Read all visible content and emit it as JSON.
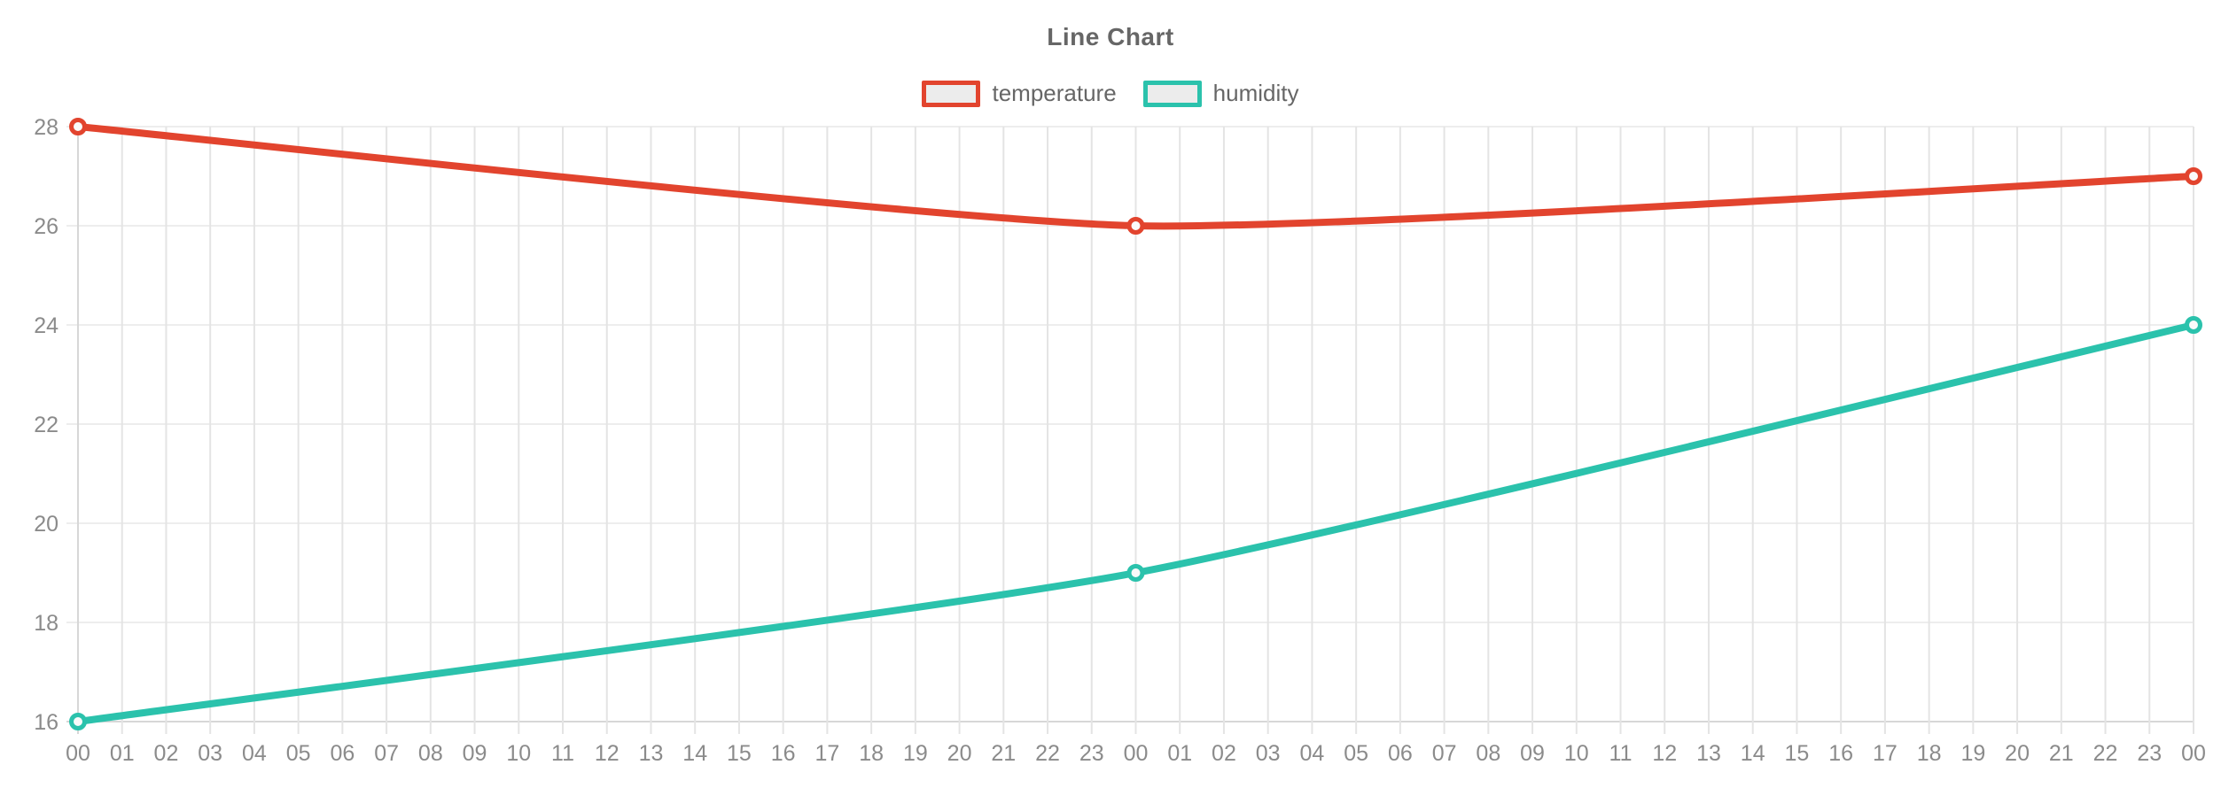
{
  "chart_data": {
    "type": "line",
    "title": "Line Chart",
    "legend_position": "top",
    "grid": true,
    "x_labels": [
      "00",
      "01",
      "02",
      "03",
      "04",
      "05",
      "06",
      "07",
      "08",
      "09",
      "10",
      "11",
      "12",
      "13",
      "14",
      "15",
      "16",
      "17",
      "18",
      "19",
      "20",
      "21",
      "22",
      "23",
      "00",
      "01",
      "02",
      "03",
      "04",
      "05",
      "06",
      "07",
      "08",
      "09",
      "10",
      "11",
      "12",
      "13",
      "14",
      "15",
      "16",
      "17",
      "18",
      "19",
      "20",
      "21",
      "22",
      "23",
      "00"
    ],
    "y_ticks": [
      16,
      18,
      20,
      22,
      24,
      26,
      28
    ],
    "ylim": [
      16,
      28
    ],
    "colors": {
      "axis_text": "#8b8b8b",
      "grid_line": "#e4e4e4",
      "grid_line_horizontal": "#ededed",
      "axis_edge_line": "#d7d7d7",
      "legend_swatch_fill": "#ececec",
      "marker_fill": "#fafafa"
    },
    "series": [
      {
        "name": "temperature",
        "color": "#e2442e",
        "points": [
          {
            "x_index": 0,
            "y": 28
          },
          {
            "x_index": 24,
            "y": 26
          },
          {
            "x_index": 48,
            "y": 27
          }
        ]
      },
      {
        "name": "humidity",
        "color": "#2bc2ac",
        "points": [
          {
            "x_index": 0,
            "y": 16
          },
          {
            "x_index": 24,
            "y": 19
          },
          {
            "x_index": 48,
            "y": 24
          }
        ]
      }
    ]
  }
}
